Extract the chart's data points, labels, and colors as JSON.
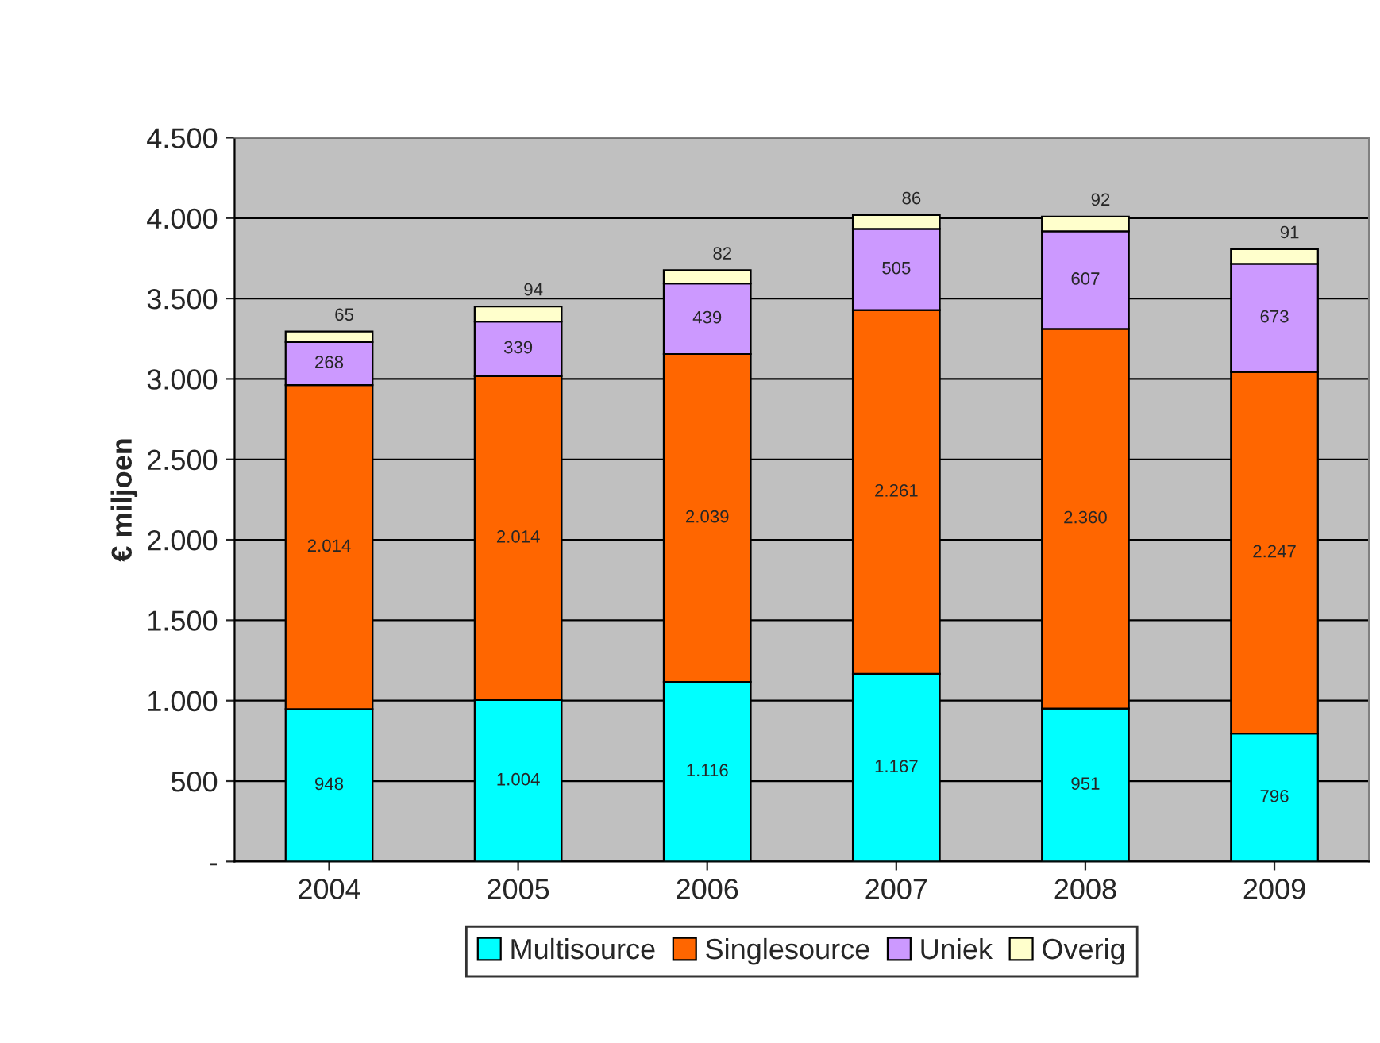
{
  "chart_data": {
    "type": "bar",
    "stacked": true,
    "ylabel": "€ miljoen",
    "categories": [
      "2004",
      "2005",
      "2006",
      "2007",
      "2008",
      "2009"
    ],
    "series": [
      {
        "name": "Multisource",
        "color": "#00ffff",
        "values": [
          948,
          1004,
          1116,
          1167,
          951,
          796
        ],
        "value_labels": [
          "948",
          "1.004",
          "1.116",
          "1.167",
          "951",
          "796"
        ]
      },
      {
        "name": "Singlesource",
        "color": "#ff6600",
        "values": [
          2014,
          2014,
          2039,
          2261,
          2360,
          2247
        ],
        "value_labels": [
          "2.014",
          "2.014",
          "2.039",
          "2.261",
          "2.360",
          "2.247"
        ]
      },
      {
        "name": "Uniek",
        "color": "#cc99ff",
        "values": [
          268,
          339,
          439,
          505,
          607,
          673
        ],
        "value_labels": [
          "268",
          "339",
          "439",
          "505",
          "607",
          "673"
        ]
      },
      {
        "name": "Overig",
        "color": "#ffffcc",
        "values": [
          65,
          94,
          82,
          86,
          92,
          91
        ],
        "value_labels": [
          "65",
          "94",
          "82",
          "86",
          "92",
          "91"
        ]
      }
    ],
    "ylim": [
      0,
      4500
    ],
    "yticks": [
      {
        "value": 0,
        "label": "-"
      },
      {
        "value": 500,
        "label": "500"
      },
      {
        "value": 1000,
        "label": "1.000"
      },
      {
        "value": 1500,
        "label": "1.500"
      },
      {
        "value": 2000,
        "label": "2.000"
      },
      {
        "value": 2500,
        "label": "2.500"
      },
      {
        "value": 3000,
        "label": "3.000"
      },
      {
        "value": 3500,
        "label": "3.500"
      },
      {
        "value": 4000,
        "label": "4.000"
      },
      {
        "value": 4500,
        "label": "4.500"
      }
    ],
    "grid": "y",
    "legend": "bottom"
  }
}
